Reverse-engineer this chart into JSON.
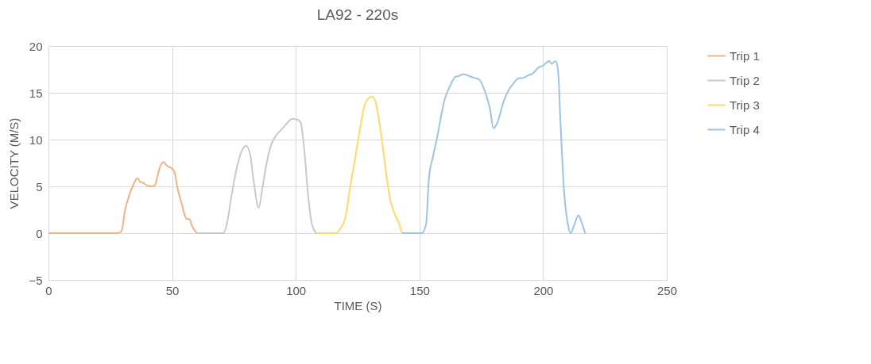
{
  "chart_data": {
    "type": "line",
    "title": "LA92 - 220s",
    "xlabel": "TIME (S)",
    "ylabel": "VELOCITY (M/S)",
    "xlim": [
      0,
      250
    ],
    "xticks": [
      0,
      50,
      100,
      150,
      200,
      250
    ],
    "ylim": [
      -5,
      20
    ],
    "yticks": [
      -5,
      0,
      5,
      10,
      15,
      20
    ],
    "grid": true,
    "legend": "right",
    "series": [
      {
        "name": "Trip 1",
        "color": "#f4b183",
        "x": [
          0,
          28,
          29.5,
          31,
          32,
          34,
          36,
          37,
          38,
          40,
          42,
          43,
          44,
          45,
          46.6,
          47.5,
          48.5,
          50,
          51,
          52,
          54,
          55,
          56,
          57,
          58,
          60
        ],
        "values": [
          0,
          0,
          0.2,
          2.5,
          3.5,
          5,
          5.9,
          5.5,
          5.4,
          5.1,
          5.0,
          5.1,
          6,
          7,
          7.6,
          7.3,
          7.1,
          6.9,
          6.5,
          5,
          3,
          2,
          1.5,
          1.5,
          0.8,
          0
        ]
      },
      {
        "name": "Trip 2",
        "color": "#c9c9c9",
        "x": [
          60,
          70.7,
          72,
          74,
          76,
          78,
          79.9,
          81.5,
          83,
          85,
          86.5,
          88,
          90,
          92.2,
          94,
          96,
          98.6,
          101,
          102,
          103.4,
          105,
          106.5,
          108.3
        ],
        "values": [
          0,
          0,
          0.8,
          4,
          6.8,
          8.7,
          9.35,
          8.5,
          5.5,
          2.7,
          4.8,
          7.2,
          9.4,
          10.5,
          11,
          11.6,
          12.2,
          12.1,
          11.8,
          9,
          4,
          1,
          0
        ]
      },
      {
        "name": "Trip 3",
        "color": "#ffd966",
        "x": [
          108.3,
          116.3,
          118,
          120,
          122,
          124,
          126,
          128,
          130.7,
          132,
          134,
          136,
          138,
          139.9,
          141.5,
          143
        ],
        "values": [
          0,
          0,
          0.5,
          1.6,
          5,
          8,
          11.2,
          13.8,
          14.6,
          14.2,
          11.5,
          7.5,
          3.8,
          2.1,
          1.2,
          0
        ]
      },
      {
        "name": "Trip 4",
        "color": "#9dc3e6",
        "x": [
          143,
          151,
          152.7,
          153.8,
          155.5,
          157,
          160.2,
          162.5,
          164.5,
          166,
          167.9,
          170,
          172,
          174.3,
          175.5,
          177.2,
          178.5,
          179.9,
          181.5,
          184.2,
          186.3,
          188,
          190.1,
          192,
          193.9,
          196,
          198.1,
          200,
          202.4,
          203.5,
          205,
          206,
          207,
          208.5,
          210,
          211.1,
          212.5,
          214.3,
          215.5,
          217
        ],
        "values": [
          0,
          0,
          1,
          5.8,
          8.2,
          10.05,
          14.3,
          15.8,
          16.7,
          16.8,
          17.0,
          16.8,
          16.6,
          16.4,
          15.8,
          14.6,
          13.3,
          11.2,
          11.8,
          14.2,
          15.4,
          16,
          16.55,
          16.6,
          16.85,
          17.1,
          17.7,
          17.9,
          18.4,
          18.1,
          18.4,
          17.5,
          12,
          4.4,
          1,
          0,
          0.8,
          1.9,
          1.2,
          0
        ]
      }
    ]
  }
}
